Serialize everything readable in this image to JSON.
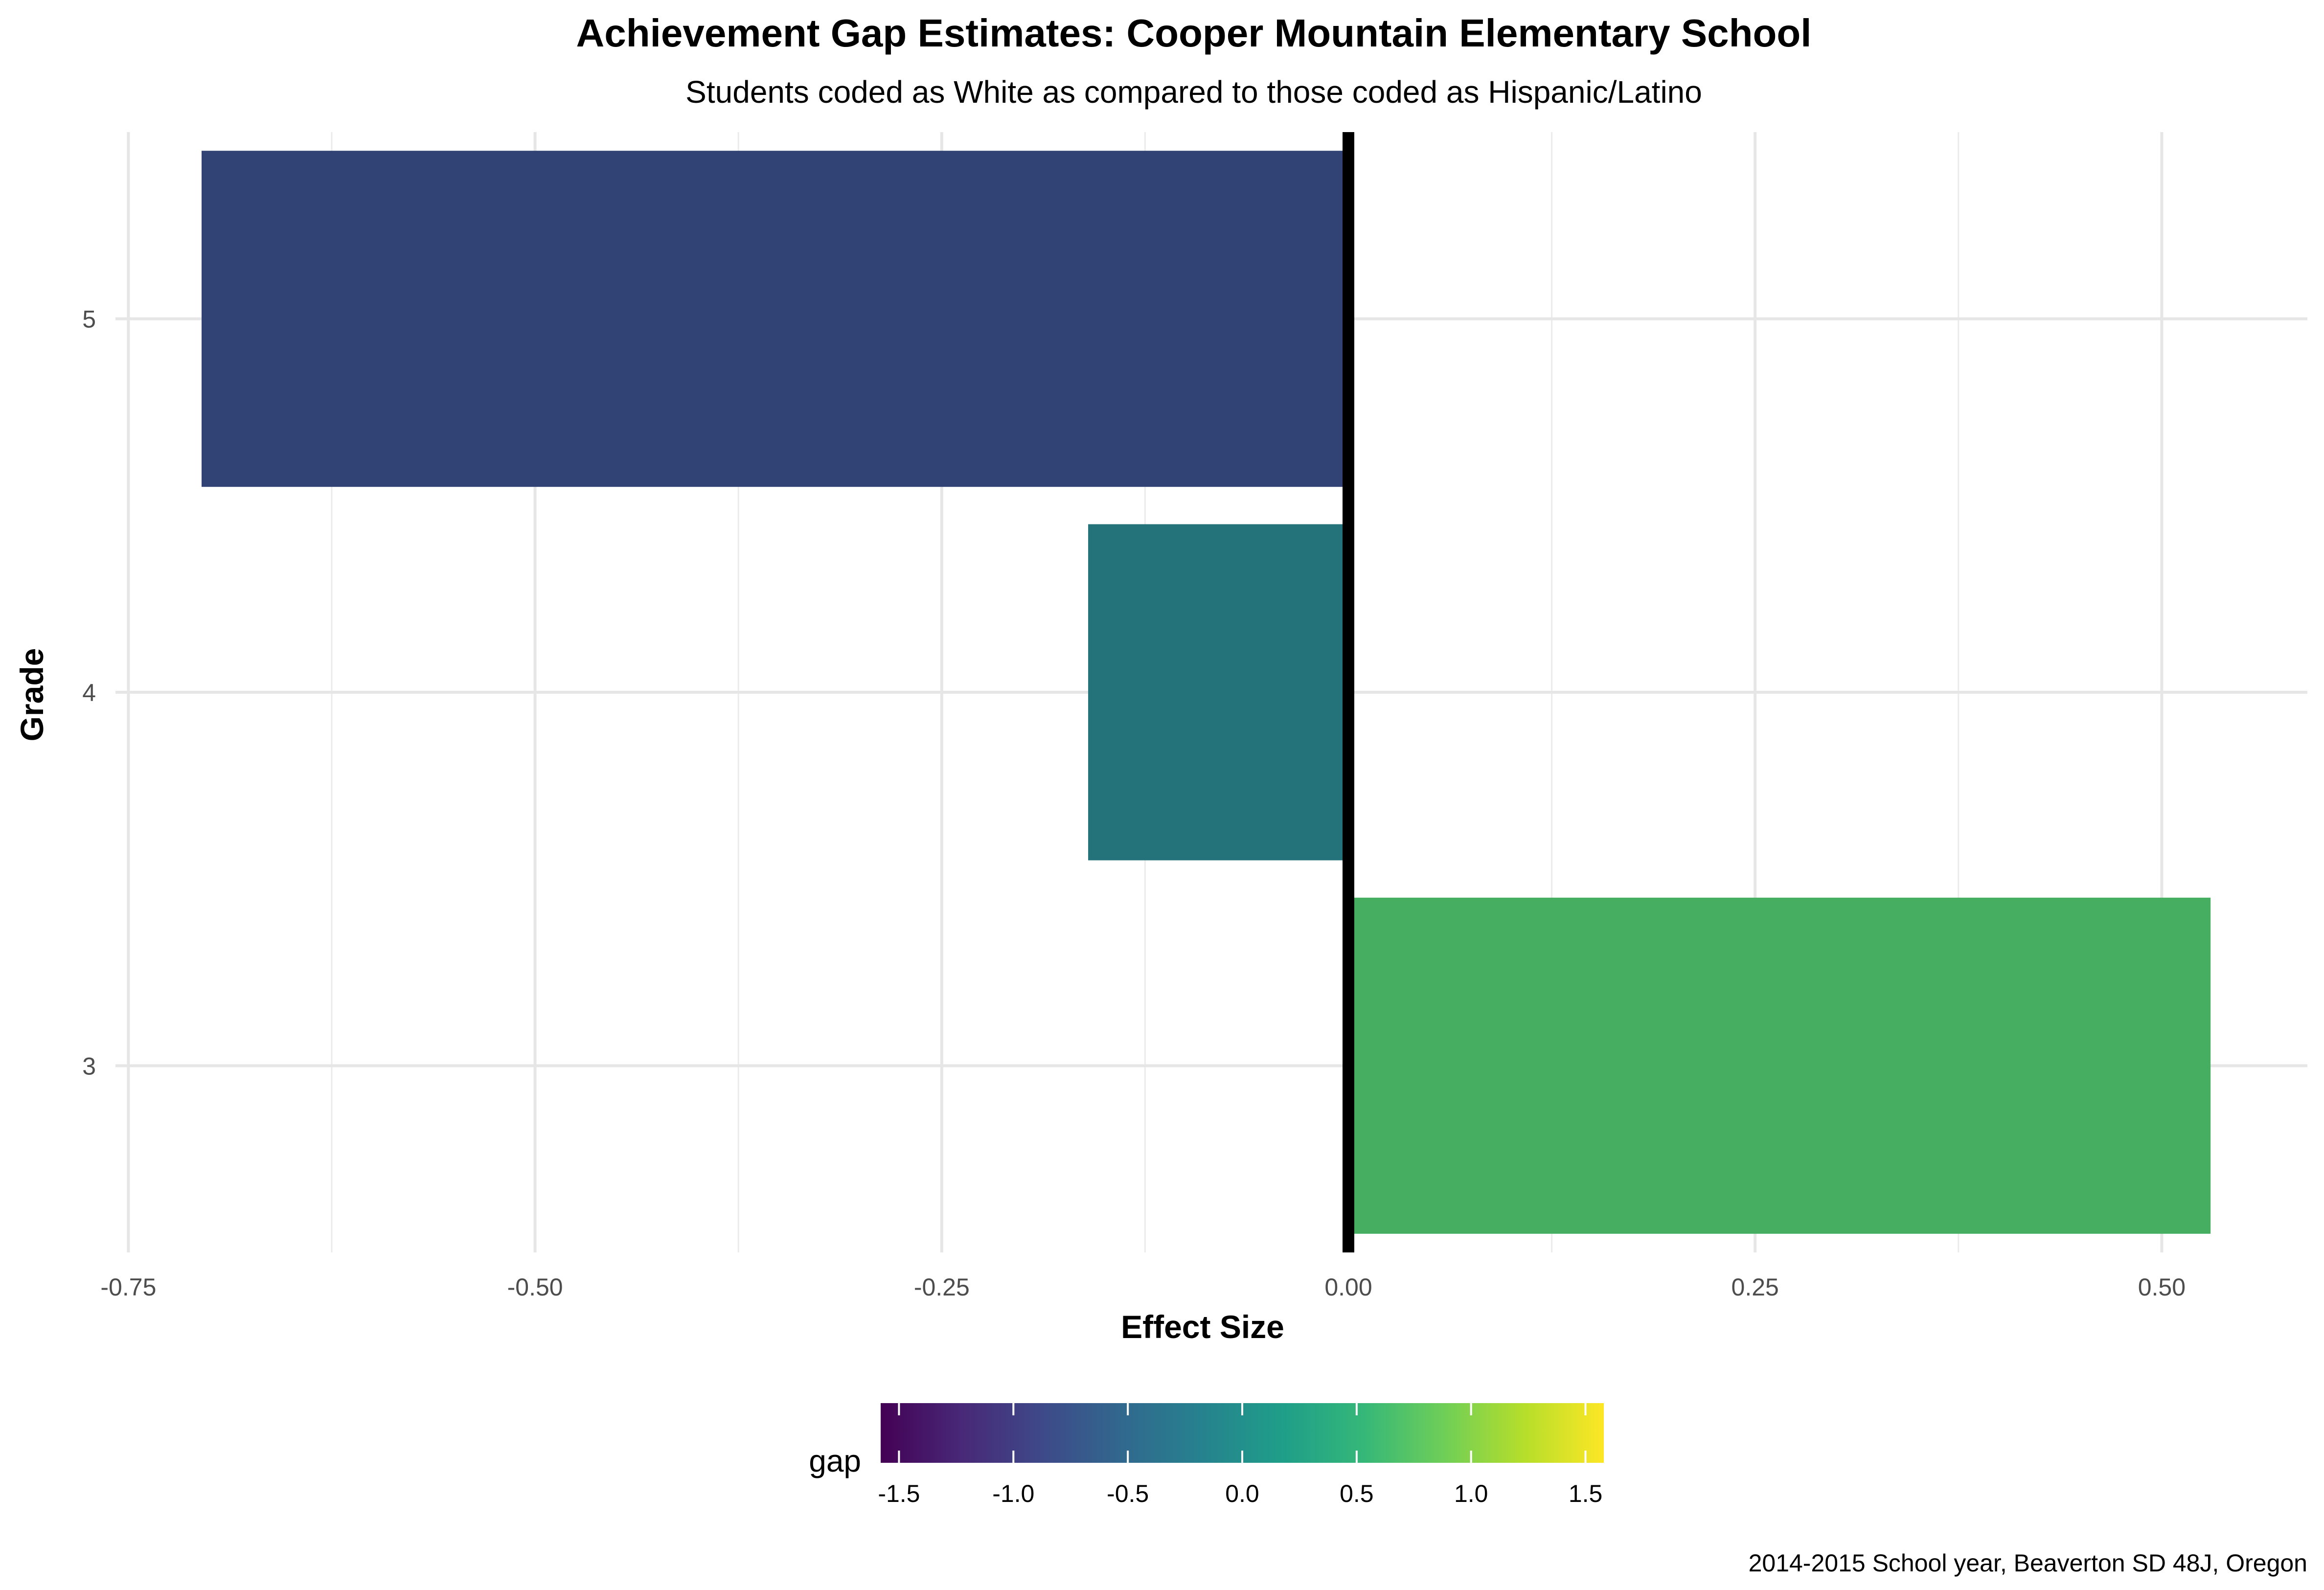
{
  "chart_data": {
    "type": "bar",
    "orientation": "horizontal",
    "title": "Achievement Gap Estimates: Cooper Mountain Elementary School",
    "subtitle": "Students coded as White as compared to those coded as Hispanic/Latino",
    "xlabel": "Effect Size",
    "ylabel": "Grade",
    "caption": "2014-2015 School year, Beaverton SD 48J, Oregon",
    "categories": [
      "3",
      "4",
      "5"
    ],
    "values": [
      0.53,
      -0.16,
      -0.705
    ],
    "bar_colors": [
      "#46ae61",
      "#24727a",
      "#314374"
    ],
    "xlim": [
      -0.75,
      0.55
    ],
    "x_ticks": [
      {
        "value": -0.75,
        "label": "-0.75"
      },
      {
        "value": -0.5,
        "label": "-0.50"
      },
      {
        "value": -0.25,
        "label": "-0.25"
      },
      {
        "value": 0,
        "label": "0.00"
      },
      {
        "value": 0.25,
        "label": "0.25"
      },
      {
        "value": 0.5,
        "label": "0.50"
      }
    ],
    "reference_line": 0,
    "grid": true,
    "legend": {
      "title": "gap",
      "placement": "bottom",
      "type": "colorbar",
      "range": [
        -1.58,
        1.58
      ],
      "ticks": [
        {
          "value": -1.5,
          "label": "-1.5"
        },
        {
          "value": -1.0,
          "label": "-1.0"
        },
        {
          "value": -0.5,
          "label": "-0.5"
        },
        {
          "value": 0.0,
          "label": "0.0"
        },
        {
          "value": 0.5,
          "label": "0.5"
        },
        {
          "value": 1.0,
          "label": "1.0"
        },
        {
          "value": 1.5,
          "label": "1.5"
        }
      ],
      "colormap": [
        "#440154",
        "#482878",
        "#3e4989",
        "#31688e",
        "#26828e",
        "#1f9e89",
        "#35b779",
        "#6ece58",
        "#b5de2b",
        "#fde725"
      ]
    }
  }
}
